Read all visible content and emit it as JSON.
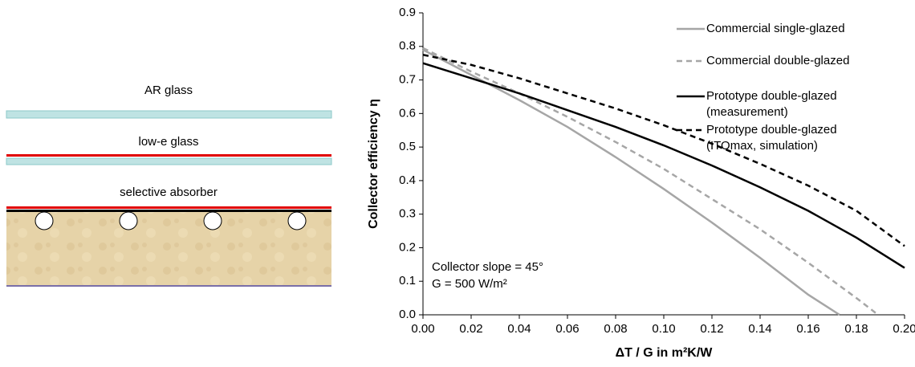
{
  "diagram": {
    "labels": [
      "AR glass",
      "low-e glass",
      "selective absorber"
    ]
  },
  "chart_data": {
    "type": "line",
    "xlabel": "ΔT / G in m²K/W",
    "ylabel": "Collector efficiency η",
    "annotations": [
      "Collector slope = 45°",
      "G = 500 W/m²"
    ],
    "xlim": [
      0,
      0.2
    ],
    "ylim": [
      0,
      0.9
    ],
    "xticks": [
      {
        "value": 0,
        "label": "0.00"
      },
      0.02,
      0.04,
      0.06,
      0.08,
      {
        "value": 0.1,
        "label": "0.10"
      },
      0.12,
      0.14,
      0.16,
      0.18,
      {
        "value": 0.2,
        "label": "0.20"
      }
    ],
    "yticks": [
      {
        "value": 0,
        "label": "0.0"
      },
      0.1,
      0.2,
      0.3,
      0.4,
      0.5,
      0.6,
      0.7,
      0.8,
      0.9
    ],
    "grid": false,
    "legend": "upper right",
    "series": [
      {
        "name": "Commercial single-glazed",
        "color": "#a6a6a6",
        "style": "solid",
        "x": [
          0,
          0.02,
          0.04,
          0.06,
          0.08,
          0.1,
          0.12,
          0.14,
          0.16,
          0.173
        ],
        "values": [
          0.79,
          0.715,
          0.64,
          0.56,
          0.47,
          0.375,
          0.275,
          0.17,
          0.06,
          0
        ]
      },
      {
        "name": "Commercial double-glazed",
        "color": "#a6a6a6",
        "style": "dashed",
        "x": [
          0,
          0.02,
          0.04,
          0.06,
          0.08,
          0.1,
          0.12,
          0.14,
          0.16,
          0.18,
          0.189
        ],
        "values": [
          0.795,
          0.725,
          0.66,
          0.59,
          0.515,
          0.435,
          0.345,
          0.255,
          0.155,
          0.05,
          0
        ]
      },
      {
        "name": "Prototype double-glazed\n(measurement)",
        "color": "#000000",
        "style": "solid",
        "x": [
          0,
          0.02,
          0.04,
          0.06,
          0.08,
          0.1,
          0.12,
          0.14,
          0.16,
          0.18,
          0.2
        ],
        "values": [
          0.75,
          0.705,
          0.66,
          0.61,
          0.56,
          0.505,
          0.445,
          0.38,
          0.31,
          0.23,
          0.14
        ]
      },
      {
        "name": "Prototype double-glazed\n(ITOmax, simulation)",
        "color": "#000000",
        "style": "dashed",
        "x": [
          0,
          0.02,
          0.04,
          0.06,
          0.08,
          0.1,
          0.12,
          0.14,
          0.16,
          0.18,
          0.2
        ],
        "values": [
          0.775,
          0.745,
          0.705,
          0.66,
          0.615,
          0.565,
          0.51,
          0.45,
          0.385,
          0.31,
          0.205
        ]
      }
    ]
  }
}
